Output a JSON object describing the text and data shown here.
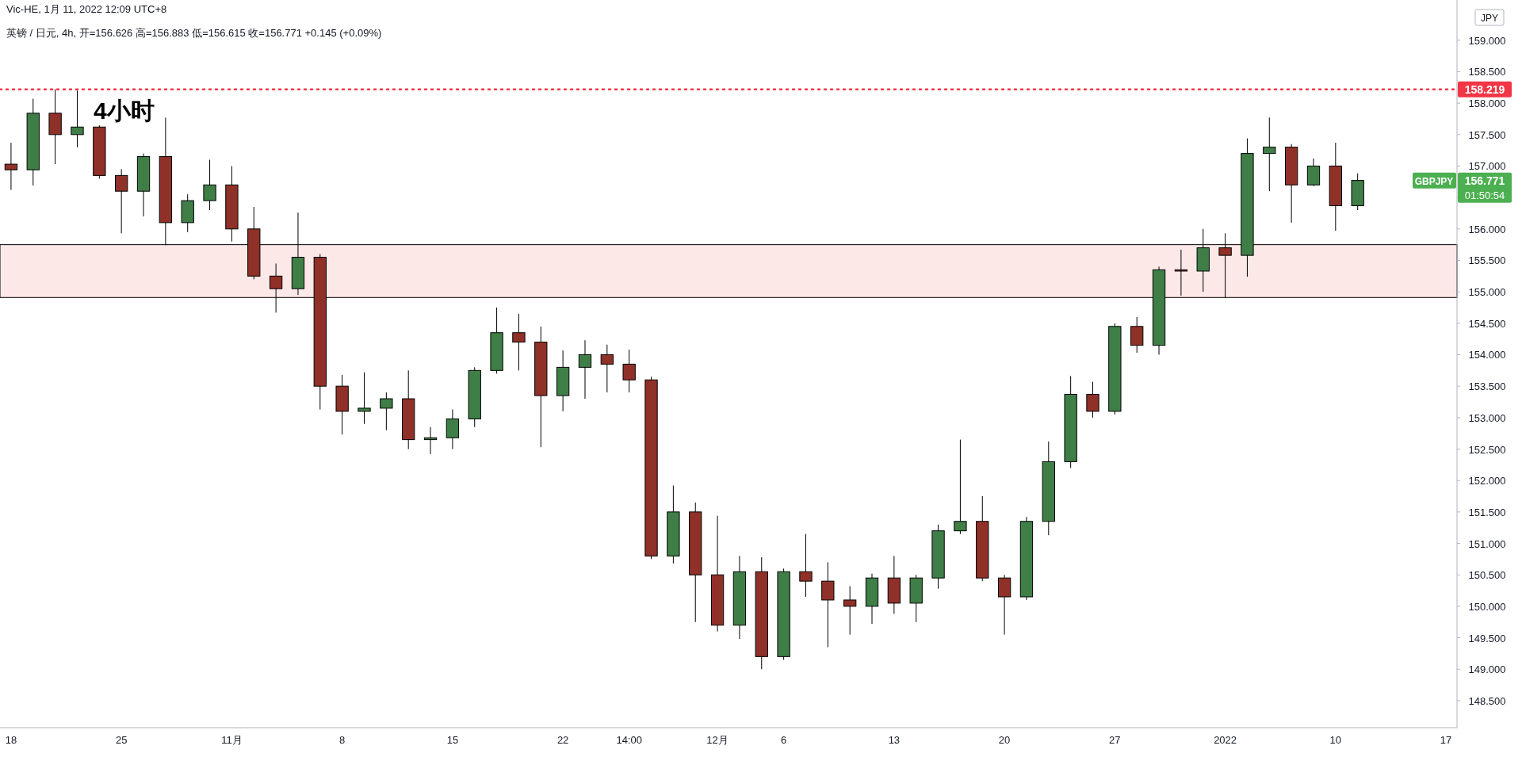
{
  "chart_data": {
    "type": "candlestick",
    "title": "4小时",
    "subtitle": "英镑 / 日元, 4h, 开=156.626 高=156.883 低=156.615 收=156.771 +0.145 (+0.09%)",
    "annotations": [
      "Vic-HE, 1月 11, 2022 12:09 UTC+8",
      "JPY",
      "GBPJPY",
      "01:50:54",
      "156.771"
    ],
    "categories": [
      "18",
      null,
      null,
      null,
      null,
      "25",
      null,
      null,
      null,
      null,
      "11月",
      null,
      null,
      null,
      null,
      "8",
      null,
      null,
      null,
      null,
      "15",
      null,
      null,
      null,
      null,
      "22",
      null,
      null,
      "14:00",
      null,
      null,
      null,
      "12月",
      null,
      null,
      "6",
      null,
      null,
      null,
      null,
      "13",
      null,
      null,
      null,
      null,
      "20",
      null,
      null,
      null,
      null,
      "27",
      null,
      null,
      null,
      null,
      "2022",
      null,
      null,
      null,
      null,
      "10",
      null,
      null,
      null,
      null,
      "17"
    ],
    "ohlc": [
      [
        157.03,
        157.37,
        156.62,
        156.94
      ],
      [
        156.94,
        158.07,
        156.69,
        157.84
      ],
      [
        157.84,
        158.22,
        157.03,
        157.5
      ],
      [
        157.5,
        158.2,
        157.3,
        157.62
      ],
      [
        157.62,
        157.65,
        156.8,
        156.85
      ],
      [
        156.85,
        156.95,
        155.93,
        156.6
      ],
      [
        156.6,
        157.2,
        156.2,
        157.15
      ],
      [
        157.15,
        157.77,
        155.74,
        156.1
      ],
      [
        156.1,
        156.55,
        155.95,
        156.45
      ],
      [
        156.45,
        157.1,
        156.3,
        156.7
      ],
      [
        156.7,
        157.0,
        155.8,
        156.0
      ],
      [
        156.0,
        156.35,
        155.2,
        155.25
      ],
      [
        155.25,
        155.45,
        154.67,
        155.05
      ],
      [
        155.05,
        156.26,
        154.95,
        155.55
      ],
      [
        155.55,
        155.6,
        153.13,
        153.5
      ],
      [
        153.5,
        153.68,
        152.73,
        153.1
      ],
      [
        153.1,
        153.72,
        152.9,
        153.15
      ],
      [
        153.15,
        153.4,
        152.8,
        153.3
      ],
      [
        153.3,
        153.75,
        152.5,
        152.65
      ],
      [
        152.65,
        152.85,
        152.42,
        152.68
      ],
      [
        152.68,
        153.13,
        152.5,
        152.98
      ],
      [
        152.98,
        153.8,
        152.85,
        153.75
      ],
      [
        153.75,
        154.75,
        153.7,
        154.35
      ],
      [
        154.35,
        154.65,
        153.75,
        154.2
      ],
      [
        154.2,
        154.45,
        152.53,
        153.35
      ],
      [
        153.35,
        154.07,
        153.1,
        153.8
      ],
      [
        153.8,
        154.23,
        153.3,
        154.0
      ],
      [
        154.0,
        154.16,
        153.4,
        153.85
      ],
      [
        153.85,
        154.08,
        153.4,
        153.6
      ],
      [
        153.6,
        153.65,
        150.75,
        150.8
      ],
      [
        150.8,
        151.92,
        150.68,
        151.5
      ],
      [
        151.5,
        151.65,
        149.75,
        150.5
      ],
      [
        150.5,
        151.44,
        149.6,
        149.7
      ],
      [
        149.7,
        150.8,
        149.48,
        150.55
      ],
      [
        150.55,
        150.78,
        149.0,
        149.2
      ],
      [
        149.2,
        150.6,
        149.15,
        150.55
      ],
      [
        150.55,
        151.15,
        150.15,
        150.4
      ],
      [
        150.4,
        150.7,
        149.35,
        150.1
      ],
      [
        150.1,
        150.32,
        149.55,
        150.0
      ],
      [
        150.0,
        150.52,
        149.72,
        150.45
      ],
      [
        150.45,
        150.8,
        149.88,
        150.05
      ],
      [
        150.05,
        150.5,
        149.75,
        150.45
      ],
      [
        150.45,
        151.3,
        150.28,
        151.2
      ],
      [
        151.2,
        152.65,
        151.15,
        151.35
      ],
      [
        151.35,
        151.75,
        150.4,
        150.45
      ],
      [
        150.45,
        150.5,
        149.55,
        150.15
      ],
      [
        150.15,
        151.42,
        150.1,
        151.35
      ],
      [
        151.35,
        152.62,
        151.13,
        152.3
      ],
      [
        152.3,
        153.66,
        152.2,
        153.37
      ],
      [
        153.37,
        153.57,
        153.0,
        153.1
      ],
      [
        153.1,
        154.5,
        153.05,
        154.45
      ],
      [
        154.45,
        154.6,
        154.03,
        154.15
      ],
      [
        154.15,
        155.4,
        154.0,
        155.35
      ],
      [
        155.35,
        155.67,
        154.94,
        155.33
      ],
      [
        155.33,
        156.0,
        155.0,
        155.7
      ],
      [
        155.7,
        155.93,
        154.9,
        155.58
      ],
      [
        155.58,
        157.44,
        155.24,
        157.2
      ],
      [
        157.2,
        157.77,
        156.6,
        157.3
      ],
      [
        157.3,
        157.35,
        156.1,
        156.7
      ],
      [
        156.7,
        157.12,
        156.68,
        157.0
      ],
      [
        157.0,
        157.37,
        155.97,
        156.37
      ],
      [
        156.37,
        156.883,
        156.3,
        156.771
      ],
      null,
      null,
      null,
      null
    ],
    "colors": [
      "#8f3128",
      "#3f7f47",
      "#8f3128",
      "#3f7f47",
      "#8f3128",
      "#8f3128",
      "#3f7f47",
      "#8f3128",
      "#3f7f47",
      "#3f7f47",
      "#8f3128",
      "#8f3128",
      "#8f3128",
      "#3f7f47",
      "#8f3128",
      "#8f3128",
      "#3f7f47",
      "#3f7f47",
      "#8f3128",
      "#3f7f47",
      "#3f7f47",
      "#3f7f47",
      "#3f7f47",
      "#8f3128",
      "#8f3128",
      "#3f7f47",
      "#3f7f47",
      "#8f3128",
      "#8f3128",
      "#8f3128",
      "#3f7f47",
      "#8f3128",
      "#8f3128",
      "#3f7f47",
      "#8f3128",
      "#3f7f47",
      "#8f3128",
      "#8f3128",
      "#8f3128",
      "#3f7f47",
      "#8f3128",
      "#3f7f47",
      "#3f7f47",
      "#3f7f47",
      "#8f3128",
      "#8f3128",
      "#3f7f47",
      "#3f7f47",
      "#3f7f47",
      "#8f3128",
      "#3f7f47",
      "#8f3128",
      "#3f7f47",
      "#8f3128",
      "#3f7f47",
      "#8f3128",
      "#3f7f47",
      "#3f7f47",
      "#8f3128",
      "#3f7f47",
      "#8f3128",
      "#3f7f47",
      null,
      null,
      null,
      null
    ],
    "ylim": [
      148.07,
      159.64
    ],
    "yticks": [
      {
        "value": 148.5,
        "label": "148.500"
      },
      {
        "value": 149,
        "label": "149.000"
      },
      {
        "value": 149.5,
        "label": "149.500"
      },
      {
        "value": 150,
        "label": "150.000"
      },
      {
        "value": 150.5,
        "label": "150.500"
      },
      {
        "value": 151,
        "label": "151.000"
      },
      {
        "value": 151.5,
        "label": "151.500"
      },
      {
        "value": 152,
        "label": "152.000"
      },
      {
        "value": 152.5,
        "label": "152.500"
      },
      {
        "value": 153,
        "label": "153.000"
      },
      {
        "value": 153.5,
        "label": "153.500"
      },
      {
        "value": 154,
        "label": "154.000"
      },
      {
        "value": 154.5,
        "label": "154.500"
      },
      {
        "value": 155,
        "label": "155.000"
      },
      {
        "value": 155.5,
        "label": "155.500"
      },
      {
        "value": 156,
        "label": "156.000"
      },
      {
        "value": 156.5,
        "label": null
      },
      {
        "value": 157,
        "label": "157.000"
      },
      {
        "value": 157.5,
        "label": "157.500"
      },
      {
        "value": 158,
        "label": "158.000"
      },
      {
        "value": 158.5,
        "label": "158.500"
      },
      {
        "value": 159,
        "label": "159.000"
      }
    ],
    "ref_lines": [
      {
        "axis": "y",
        "value": 158.219,
        "label": "158.219",
        "color": "#f23645",
        "line_style": "dotted"
      }
    ],
    "bands": [
      {
        "axis": "y",
        "from": 154.91,
        "to": 155.75,
        "color": "#fde8e8"
      }
    ]
  }
}
